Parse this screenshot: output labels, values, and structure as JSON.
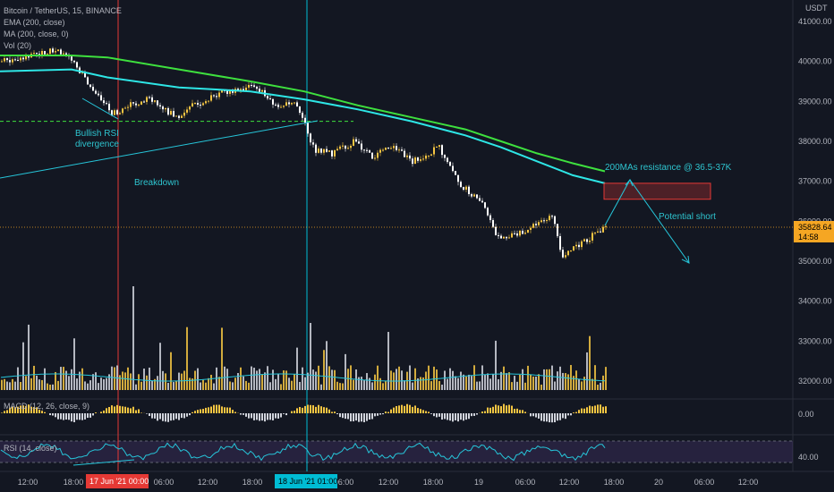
{
  "header": {
    "title": "Bitcoin / TetherUS, 15, BINANCE",
    "indicators": [
      "EMA (200, close)",
      "MA (200, close, 0)",
      "Vol (20)"
    ],
    "currency": "USDT"
  },
  "panes": {
    "macd_label": "MACD (12, 26, close, 9)",
    "macd_value": "0.00",
    "rsi_label": "RSI (14, close)",
    "rsi_value": "40.00"
  },
  "price_tag": {
    "value": "35828.64",
    "countdown": "14:58",
    "color": "#f5a623"
  },
  "colors": {
    "background": "#131722",
    "candle_up": "#f5c542",
    "candle_down": "#ffffff",
    "ema": "#3ee03e",
    "ma": "#2ee6e6",
    "annotation": "#2ec4cf",
    "vline_red": "#e53935",
    "vline_cyan": "#00bcd4",
    "resistance_box": "#e53935"
  },
  "annotations": {
    "bullish_rsi": [
      "Bullish RSI",
      "divergence"
    ],
    "breakdown": "Breakdown",
    "resistance": "200MAs resistance @ 36.5-37K",
    "potential_short": "Potential short"
  },
  "time_markers": [
    {
      "label": "17 Jun '21  00:00",
      "color": "#e53935"
    },
    {
      "label": "18 Jun '21  01:00",
      "color": "#00bcd4"
    }
  ],
  "chart_data": {
    "type": "candlestick",
    "x_ticks": [
      "12:00",
      "18:00",
      "06:00",
      "12:00",
      "18:00",
      "06:00",
      "12:00",
      "18:00",
      "19",
      "06:00",
      "12:00",
      "18:00",
      "20",
      "06:00",
      "12:00"
    ],
    "y_ticks": [
      41000,
      40000,
      39000,
      38000,
      37000,
      36000,
      35000,
      34000,
      33000,
      32000
    ],
    "ylim": [
      31800,
      41400
    ],
    "ema200_points": [
      [
        0,
        40150
      ],
      [
        80,
        40150
      ],
      [
        120,
        40100
      ],
      [
        200,
        39800
      ],
      [
        280,
        39500
      ],
      [
        340,
        39250
      ],
      [
        400,
        38900
      ],
      [
        460,
        38600
      ],
      [
        520,
        38300
      ],
      [
        560,
        38000
      ],
      [
        600,
        37700
      ],
      [
        640,
        37450
      ],
      [
        676,
        37250
      ]
    ],
    "ma200_points": [
      [
        0,
        39750
      ],
      [
        80,
        39800
      ],
      [
        120,
        39600
      ],
      [
        200,
        39350
      ],
      [
        280,
        39250
      ],
      [
        340,
        39050
      ],
      [
        400,
        38800
      ],
      [
        460,
        38500
      ],
      [
        520,
        38150
      ],
      [
        560,
        37850
      ],
      [
        600,
        37500
      ],
      [
        640,
        37150
      ],
      [
        676,
        36950
      ]
    ],
    "price_path": [
      [
        0,
        40000
      ],
      [
        40,
        40200
      ],
      [
        60,
        40300
      ],
      [
        85,
        39900
      ],
      [
        100,
        39300
      ],
      [
        125,
        38700
      ],
      [
        145,
        38900
      ],
      [
        165,
        39100
      ],
      [
        195,
        38600
      ],
      [
        215,
        38900
      ],
      [
        240,
        39150
      ],
      [
        260,
        39300
      ],
      [
        285,
        39400
      ],
      [
        305,
        38900
      ],
      [
        330,
        38900
      ],
      [
        342,
        38300
      ],
      [
        350,
        37800
      ],
      [
        370,
        37700
      ],
      [
        395,
        38000
      ],
      [
        415,
        37600
      ],
      [
        440,
        37900
      ],
      [
        460,
        37500
      ],
      [
        490,
        37850
      ],
      [
        515,
        36900
      ],
      [
        540,
        36400
      ],
      [
        555,
        35600
      ],
      [
        575,
        35700
      ],
      [
        600,
        35900
      ],
      [
        615,
        36200
      ],
      [
        628,
        35100
      ],
      [
        645,
        35400
      ],
      [
        665,
        35700
      ],
      [
        676,
        35830
      ]
    ],
    "resistance_box": {
      "price_low": 36550,
      "price_high": 36950
    },
    "support_dashed_level": 38500,
    "last_price": 35828.64
  }
}
